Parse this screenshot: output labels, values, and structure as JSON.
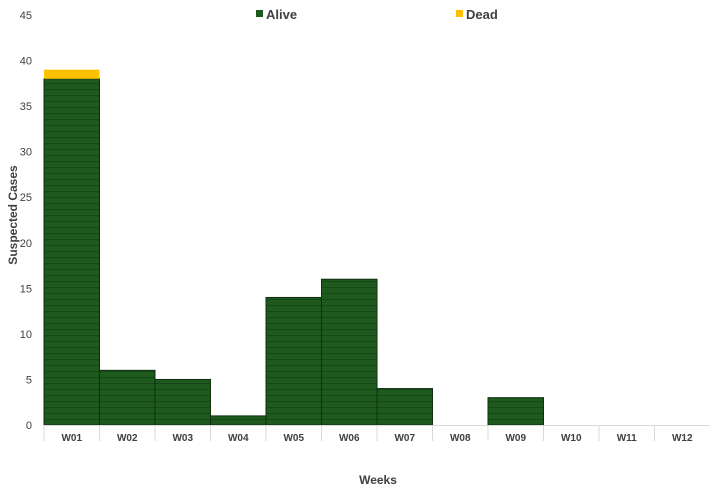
{
  "chart_data": {
    "type": "bar",
    "stacked": true,
    "categories": [
      "W01",
      "W02",
      "W03",
      "W04",
      "W05",
      "W06",
      "W07",
      "W08",
      "W09",
      "W10",
      "W11",
      "W12"
    ],
    "series": [
      {
        "name": "Alive",
        "color": "#1e5a1e",
        "values": [
          38,
          6,
          5,
          1,
          14,
          16,
          4,
          0,
          3,
          0,
          0,
          0
        ]
      },
      {
        "name": "Dead",
        "color": "#ffc000",
        "values": [
          1,
          0,
          0,
          0,
          0,
          0,
          0,
          0,
          0,
          0,
          0,
          0
        ]
      }
    ],
    "xlabel": "Weeks",
    "ylabel": "Suspected Cases",
    "ylim": [
      0,
      45
    ],
    "yticks": [
      0,
      5,
      10,
      15,
      20,
      25,
      30,
      35,
      40,
      45
    ],
    "grid": false,
    "legend_position": "top-center"
  }
}
